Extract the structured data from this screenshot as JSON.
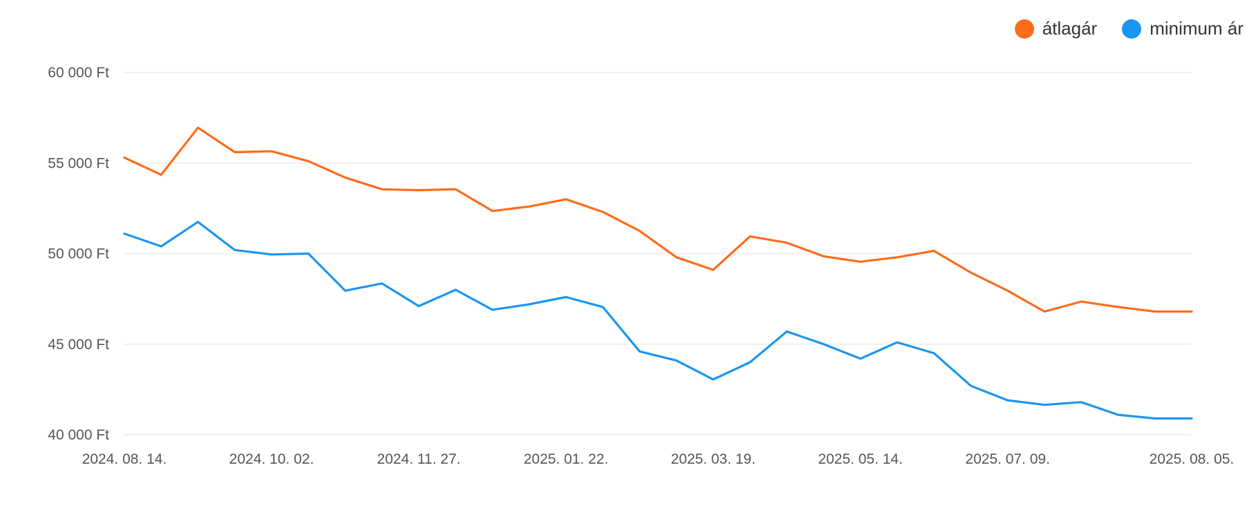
{
  "legend": [
    {
      "label": "átlagár",
      "color": "#ff6b1a"
    },
    {
      "label": "minimum ár",
      "color": "#1a96f0"
    }
  ],
  "chart_data": {
    "type": "line",
    "legend_position": "top-right",
    "grid": true,
    "y_ticks": [
      40000,
      45000,
      50000,
      55000,
      60000
    ],
    "y_tick_labels": [
      "40 000 Ft",
      "45 000 Ft",
      "50 000 Ft",
      "55 000 Ft",
      "60 000 Ft"
    ],
    "ylim": [
      40000,
      60000
    ],
    "x_tick_labels": [
      {
        "label": "2024. 08. 14.",
        "index": 0
      },
      {
        "label": "2024. 10. 02.",
        "index": 4
      },
      {
        "label": "2024. 11. 27.",
        "index": 8
      },
      {
        "label": "2025. 01. 22.",
        "index": 12
      },
      {
        "label": "2025. 03. 19.",
        "index": 16
      },
      {
        "label": "2025. 05. 14.",
        "index": 20
      },
      {
        "label": "2025. 07. 09.",
        "index": 24
      },
      {
        "label": "2025. 08. 05.",
        "index": 29
      }
    ],
    "series": [
      {
        "name": "átlagár",
        "color": "#ff6b1a",
        "values": [
          55300,
          54350,
          56950,
          55600,
          55650,
          55100,
          54200,
          53550,
          53500,
          53550,
          52350,
          52600,
          53000,
          52300,
          51250,
          49800,
          49100,
          50950,
          50600,
          49850,
          49550,
          49800,
          50150,
          48950,
          47950,
          46800,
          47350,
          47050,
          46800,
          46800
        ]
      },
      {
        "name": "minimum ár",
        "color": "#1a96f0",
        "values": [
          51100,
          50400,
          51750,
          50200,
          49950,
          50000,
          47950,
          48350,
          47100,
          48000,
          46900,
          47200,
          47600,
          47050,
          44600,
          44100,
          43050,
          44000,
          45700,
          45000,
          44200,
          45100,
          44500,
          42700,
          41900,
          41650,
          41800,
          41100,
          40900,
          40900
        ]
      }
    ]
  }
}
